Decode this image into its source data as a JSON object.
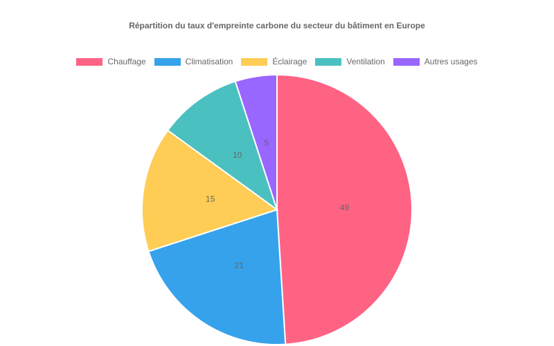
{
  "chart_data": {
    "type": "pie",
    "title": "Répartition du taux d'empreinte carbone du secteur du bâtiment en Europe",
    "categories": [
      "Chauffage",
      "Climatisation",
      "Éclairage",
      "Ventilation",
      "Autres usages"
    ],
    "values": [
      49,
      21,
      15,
      10,
      5
    ],
    "colors": [
      "#ff6384",
      "#36a2eb",
      "#ffcd56",
      "#4bc0c0",
      "#9966ff"
    ],
    "legend_position": "top",
    "data_labels": true
  }
}
